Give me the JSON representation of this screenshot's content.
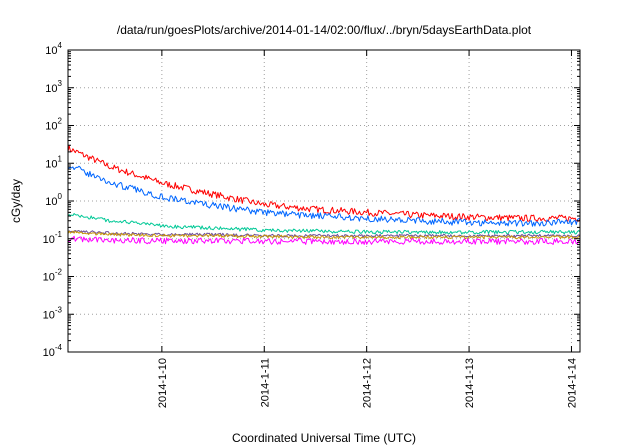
{
  "chart_data": {
    "type": "line",
    "title": "/data/run/goesPlots/archive/2014-01-14/02:00/flux/../bryn/5daysEarthData.plot",
    "xlabel": "Coordinated Universal Time (UTC)",
    "ylabel": "cGy/day",
    "y_scale": "log",
    "ylim": [
      0.0001,
      10000
    ],
    "y_ticks": [
      {
        "base": "10",
        "exp": "-4",
        "value": 0.0001
      },
      {
        "base": "10",
        "exp": "-3",
        "value": 0.001
      },
      {
        "base": "10",
        "exp": "-2",
        "value": 0.01
      },
      {
        "base": "10",
        "exp": "-1",
        "value": 0.1
      },
      {
        "base": "10",
        "exp": "0",
        "value": 1
      },
      {
        "base": "10",
        "exp": "1",
        "value": 10
      },
      {
        "base": "10",
        "exp": "2",
        "value": 100
      },
      {
        "base": "10",
        "exp": "3",
        "value": 1000
      },
      {
        "base": "10",
        "exp": "4",
        "value": 10000
      }
    ],
    "xlim": [
      "2014-01-09 02:00",
      "2014-01-14 02:00"
    ],
    "x_ticks": [
      {
        "label": "2014-1-10",
        "value": "2014-01-10"
      },
      {
        "label": "2014-1-11",
        "value": "2014-01-11"
      },
      {
        "label": "2014-1-12",
        "value": "2014-01-12"
      },
      {
        "label": "2014-1-13",
        "value": "2014-01-13"
      },
      {
        "label": "2014-1-14",
        "value": "2014-01-14"
      }
    ],
    "grid": true,
    "legend": "none",
    "series": [
      {
        "color": "#ff0000",
        "noise": 0.09,
        "x": [
          "2014-01-09 02:00",
          "2014-01-09 12:00",
          "2014-01-10 00:00",
          "2014-01-10 12:00",
          "2014-01-11 00:00",
          "2014-01-11 12:00",
          "2014-01-12 00:00",
          "2014-01-12 12:00",
          "2014-01-13 00:00",
          "2014-01-13 12:00",
          "2014-01-14 02:00"
        ],
        "values": [
          25,
          8,
          3,
          1.5,
          0.8,
          0.6,
          0.5,
          0.42,
          0.38,
          0.35,
          0.35
        ]
      },
      {
        "color": "#0066ff",
        "noise": 0.09,
        "x": [
          "2014-01-09 02:00",
          "2014-01-09 12:00",
          "2014-01-10 00:00",
          "2014-01-10 12:00",
          "2014-01-11 00:00",
          "2014-01-11 12:00",
          "2014-01-12 00:00",
          "2014-01-12 12:00",
          "2014-01-13 00:00",
          "2014-01-13 12:00",
          "2014-01-14 02:00"
        ],
        "values": [
          9,
          3,
          1.3,
          0.75,
          0.5,
          0.4,
          0.35,
          0.3,
          0.27,
          0.26,
          0.28
        ]
      },
      {
        "color": "#00c896",
        "noise": 0.05,
        "x": [
          "2014-01-09 02:00",
          "2014-01-09 12:00",
          "2014-01-10 00:00",
          "2014-01-10 12:00",
          "2014-01-11 00:00",
          "2014-01-11 12:00",
          "2014-01-12 00:00",
          "2014-01-12 12:00",
          "2014-01-13 00:00",
          "2014-01-13 12:00",
          "2014-01-14 02:00"
        ],
        "values": [
          0.45,
          0.3,
          0.22,
          0.19,
          0.17,
          0.16,
          0.15,
          0.15,
          0.15,
          0.15,
          0.15
        ]
      },
      {
        "color": "#6b4c9a",
        "noise": 0.04,
        "x": [
          "2014-01-09 02:00",
          "2014-01-09 12:00",
          "2014-01-10 00:00",
          "2014-01-10 12:00",
          "2014-01-11 00:00",
          "2014-01-11 12:00",
          "2014-01-12 00:00",
          "2014-01-12 12:00",
          "2014-01-13 00:00",
          "2014-01-13 12:00",
          "2014-01-14 02:00"
        ],
        "values": [
          0.16,
          0.14,
          0.13,
          0.13,
          0.12,
          0.12,
          0.12,
          0.12,
          0.12,
          0.12,
          0.12
        ]
      },
      {
        "color": "#c8960a",
        "noise": 0.04,
        "x": [
          "2014-01-09 02:00",
          "2014-01-09 12:00",
          "2014-01-10 00:00",
          "2014-01-10 12:00",
          "2014-01-11 00:00",
          "2014-01-11 12:00",
          "2014-01-12 00:00",
          "2014-01-12 12:00",
          "2014-01-13 00:00",
          "2014-01-13 12:00",
          "2014-01-14 02:00"
        ],
        "values": [
          0.15,
          0.13,
          0.12,
          0.12,
          0.115,
          0.11,
          0.11,
          0.11,
          0.11,
          0.11,
          0.11
        ]
      },
      {
        "color": "#ff00ff",
        "noise": 0.08,
        "x": [
          "2014-01-09 02:00",
          "2014-01-09 12:00",
          "2014-01-10 00:00",
          "2014-01-10 12:00",
          "2014-01-11 00:00",
          "2014-01-11 12:00",
          "2014-01-12 00:00",
          "2014-01-12 12:00",
          "2014-01-13 00:00",
          "2014-01-13 12:00",
          "2014-01-14 02:00"
        ],
        "values": [
          0.1,
          0.09,
          0.088,
          0.087,
          0.086,
          0.085,
          0.085,
          0.085,
          0.085,
          0.085,
          0.085
        ]
      }
    ]
  }
}
